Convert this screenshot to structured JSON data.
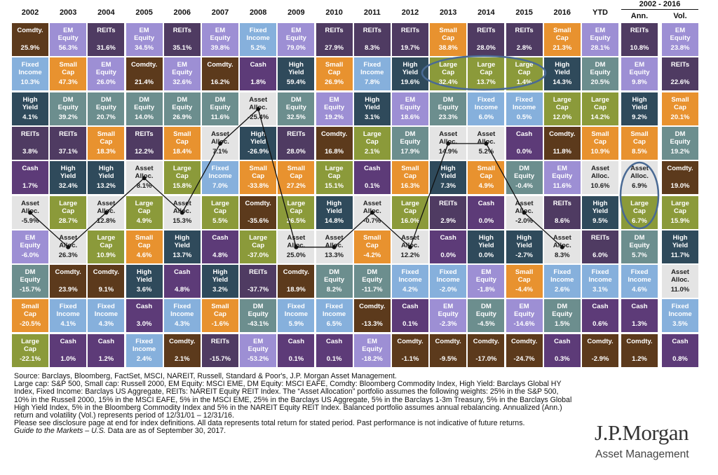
{
  "group_header": "2002 - 2016",
  "columns": [
    {
      "header": "2002",
      "connect": true,
      "cells": [
        [
          "Comdty.",
          "25.9%",
          "#5c3a1c"
        ],
        [
          "Fixed Income",
          "10.3%",
          "#86b0dc"
        ],
        [
          "High Yield",
          "4.1%",
          "#2f4a5b"
        ],
        [
          "REITs",
          "3.8%",
          "#4f3b62"
        ],
        [
          "Cash",
          "1.7%",
          "#5d3b78"
        ],
        [
          "Asset Alloc.",
          "-5.9%",
          "#e4e4e4"
        ],
        [
          "EM Equity",
          "-6.0%",
          "#9d8fd4"
        ],
        [
          "DM Equity",
          "-15.7%",
          "#6c8e8e"
        ],
        [
          "Small Cap",
          "-20.5%",
          "#e8922f"
        ],
        [
          "Large Cap",
          "-22.1%",
          "#8b9a3a"
        ]
      ]
    },
    {
      "header": "2003",
      "connect": true,
      "cells": [
        [
          "EM Equity",
          "56.3%",
          "#9d8fd4"
        ],
        [
          "Small Cap",
          "47.3%",
          "#e8922f"
        ],
        [
          "DM Equity",
          "39.2%",
          "#6c8e8e"
        ],
        [
          "REITs",
          "37.1%",
          "#4f3b62"
        ],
        [
          "High Yield",
          "32.4%",
          "#2f4a5b"
        ],
        [
          "Large Cap",
          "28.7%",
          "#8b9a3a"
        ],
        [
          "Asset Alloc.",
          "26.3%",
          "#e4e4e4"
        ],
        [
          "Comdty.",
          "23.9%",
          "#5c3a1c"
        ],
        [
          "Fixed Income",
          "4.1%",
          "#86b0dc"
        ],
        [
          "Cash",
          "1.0%",
          "#5d3b78"
        ]
      ]
    },
    {
      "header": "2004",
      "connect": true,
      "cells": [
        [
          "REITs",
          "31.6%",
          "#4f3b62"
        ],
        [
          "EM Equity",
          "26.0%",
          "#9d8fd4"
        ],
        [
          "DM Equity",
          "20.7%",
          "#6c8e8e"
        ],
        [
          "Small Cap",
          "18.3%",
          "#e8922f"
        ],
        [
          "High Yield",
          "13.2%",
          "#2f4a5b"
        ],
        [
          "Asset Alloc.",
          "12.8%",
          "#e4e4e4"
        ],
        [
          "Large Cap",
          "10.9%",
          "#8b9a3a"
        ],
        [
          "Comdty.",
          "9.1%",
          "#5c3a1c"
        ],
        [
          "Fixed Income",
          "4.3%",
          "#86b0dc"
        ],
        [
          "Cash",
          "1.2%",
          "#5d3b78"
        ]
      ]
    },
    {
      "header": "2005",
      "connect": true,
      "cells": [
        [
          "EM Equity",
          "34.5%",
          "#9d8fd4"
        ],
        [
          "Comdty.",
          "21.4%",
          "#5c3a1c"
        ],
        [
          "DM Equity",
          "14.0%",
          "#6c8e8e"
        ],
        [
          "REITs",
          "12.2%",
          "#4f3b62"
        ],
        [
          "Asset Alloc.",
          "8.1%",
          "#e4e4e4"
        ],
        [
          "Large Cap",
          "4.9%",
          "#8b9a3a"
        ],
        [
          "Small Cap",
          "4.6%",
          "#e8922f"
        ],
        [
          "High Yield",
          "3.6%",
          "#2f4a5b"
        ],
        [
          "Cash",
          "3.0%",
          "#5d3b78"
        ],
        [
          "Fixed Income",
          "2.4%",
          "#86b0dc"
        ]
      ]
    },
    {
      "header": "2006",
      "connect": true,
      "cells": [
        [
          "REITs",
          "35.1%",
          "#4f3b62"
        ],
        [
          "EM Equity",
          "32.6%",
          "#9d8fd4"
        ],
        [
          "DM Equity",
          "26.9%",
          "#6c8e8e"
        ],
        [
          "Small Cap",
          "18.4%",
          "#e8922f"
        ],
        [
          "Large Cap",
          "15.8%",
          "#8b9a3a"
        ],
        [
          "Asset Alloc.",
          "15.3%",
          "#e4e4e4"
        ],
        [
          "High Yield",
          "13.7%",
          "#2f4a5b"
        ],
        [
          "Cash",
          "4.8%",
          "#5d3b78"
        ],
        [
          "Fixed Income",
          "4.3%",
          "#86b0dc"
        ],
        [
          "Comdty.",
          "2.1%",
          "#5c3a1c"
        ]
      ]
    },
    {
      "header": "2007",
      "connect": true,
      "cells": [
        [
          "EM Equity",
          "39.8%",
          "#9d8fd4"
        ],
        [
          "Comdty.",
          "16.2%",
          "#5c3a1c"
        ],
        [
          "DM Equity",
          "11.6%",
          "#6c8e8e"
        ],
        [
          "Asset Alloc.",
          "7.1%",
          "#e4e4e4"
        ],
        [
          "Fixed Income",
          "7.0%",
          "#86b0dc"
        ],
        [
          "Large Cap",
          "5.5%",
          "#8b9a3a"
        ],
        [
          "Cash",
          "4.8%",
          "#5d3b78"
        ],
        [
          "High Yield",
          "3.2%",
          "#2f4a5b"
        ],
        [
          "Small Cap",
          "-1.6%",
          "#e8922f"
        ],
        [
          "REITs",
          "-15.7%",
          "#4f3b62"
        ]
      ]
    },
    {
      "header": "2008",
      "connect": true,
      "cells": [
        [
          "Fixed Income",
          "5.2%",
          "#86b0dc"
        ],
        [
          "Cash",
          "1.8%",
          "#5d3b78"
        ],
        [
          "Asset Alloc.",
          "-25.4%",
          "#e4e4e4"
        ],
        [
          "High Yield",
          "-26.9%",
          "#2f4a5b"
        ],
        [
          "Small Cap",
          "-33.8%",
          "#e8922f"
        ],
        [
          "Comdty.",
          "-35.6%",
          "#5c3a1c"
        ],
        [
          "Large Cap",
          "-37.0%",
          "#8b9a3a"
        ],
        [
          "REITs",
          "-37.7%",
          "#4f3b62"
        ],
        [
          "DM Equity",
          "-43.1%",
          "#6c8e8e"
        ],
        [
          "EM Equity",
          "-53.2%",
          "#9d8fd4"
        ]
      ]
    },
    {
      "header": "2009",
      "connect": true,
      "cells": [
        [
          "EM Equity",
          "79.0%",
          "#9d8fd4"
        ],
        [
          "High Yield",
          "59.4%",
          "#2f4a5b"
        ],
        [
          "DM Equity",
          "32.5%",
          "#6c8e8e"
        ],
        [
          "REITs",
          "28.0%",
          "#4f3b62"
        ],
        [
          "Small Cap",
          "27.2%",
          "#e8922f"
        ],
        [
          "Large Cap",
          "26.5%",
          "#8b9a3a"
        ],
        [
          "Asset Alloc.",
          "25.0%",
          "#e4e4e4"
        ],
        [
          "Comdty.",
          "18.9%",
          "#5c3a1c"
        ],
        [
          "Fixed Income",
          "5.9%",
          "#86b0dc"
        ],
        [
          "Cash",
          "0.1%",
          "#5d3b78"
        ]
      ]
    },
    {
      "header": "2010",
      "connect": true,
      "cells": [
        [
          "REITs",
          "27.9%",
          "#4f3b62"
        ],
        [
          "Small Cap",
          "26.9%",
          "#e8922f"
        ],
        [
          "EM Equity",
          "19.2%",
          "#9d8fd4"
        ],
        [
          "Comdty.",
          "16.8%",
          "#5c3a1c"
        ],
        [
          "Large Cap",
          "15.1%",
          "#8b9a3a"
        ],
        [
          "High Yield",
          "14.8%",
          "#2f4a5b"
        ],
        [
          "Asset Alloc.",
          "13.3%",
          "#e4e4e4"
        ],
        [
          "DM Equity",
          "8.2%",
          "#6c8e8e"
        ],
        [
          "Fixed Income",
          "6.5%",
          "#86b0dc"
        ],
        [
          "Cash",
          "0.1%",
          "#5d3b78"
        ]
      ]
    },
    {
      "header": "2011",
      "connect": true,
      "cells": [
        [
          "REITs",
          "8.3%",
          "#4f3b62"
        ],
        [
          "Fixed Income",
          "7.8%",
          "#86b0dc"
        ],
        [
          "High Yield",
          "3.1%",
          "#2f4a5b"
        ],
        [
          "Large Cap",
          "2.1%",
          "#8b9a3a"
        ],
        [
          "Cash",
          "0.1%",
          "#5d3b78"
        ],
        [
          "Asset Alloc.",
          "-0.7%",
          "#e4e4e4"
        ],
        [
          "Small Cap",
          "-4.2%",
          "#e8922f"
        ],
        [
          "DM Equity",
          "-11.7%",
          "#6c8e8e"
        ],
        [
          "Comdty.",
          "-13.3%",
          "#5c3a1c"
        ],
        [
          "EM Equity",
          "-18.2%",
          "#9d8fd4"
        ]
      ]
    },
    {
      "header": "2012",
      "connect": true,
      "cells": [
        [
          "REITs",
          "19.7%",
          "#4f3b62"
        ],
        [
          "High Yield",
          "19.6%",
          "#2f4a5b"
        ],
        [
          "EM Equity",
          "18.6%",
          "#9d8fd4"
        ],
        [
          "DM Equity",
          "17.9%",
          "#6c8e8e"
        ],
        [
          "Small Cap",
          "16.3%",
          "#e8922f"
        ],
        [
          "Large Cap",
          "16.0%",
          "#8b9a3a"
        ],
        [
          "Asset Alloc.",
          "12.2%",
          "#e4e4e4"
        ],
        [
          "Fixed Income",
          "4.2%",
          "#86b0dc"
        ],
        [
          "Cash",
          "0.1%",
          "#5d3b78"
        ],
        [
          "Comdty.",
          "-1.1%",
          "#5c3a1c"
        ]
      ]
    },
    {
      "header": "2013",
      "connect": true,
      "cells": [
        [
          "Small Cap",
          "38.8%",
          "#e8922f"
        ],
        [
          "Large Cap",
          "32.4%",
          "#8b9a3a"
        ],
        [
          "DM Equity",
          "23.3%",
          "#6c8e8e"
        ],
        [
          "Asset Alloc.",
          "14.9%",
          "#e4e4e4"
        ],
        [
          "High Yield",
          "7.3%",
          "#2f4a5b"
        ],
        [
          "REITs",
          "2.9%",
          "#4f3b62"
        ],
        [
          "Cash",
          "0.0%",
          "#5d3b78"
        ],
        [
          "Fixed Income",
          "-2.0%",
          "#86b0dc"
        ],
        [
          "EM Equity",
          "-2.3%",
          "#9d8fd4"
        ],
        [
          "Comdty.",
          "-9.5%",
          "#5c3a1c"
        ]
      ]
    },
    {
      "header": "2014",
      "connect": true,
      "cells": [
        [
          "REITs",
          "28.0%",
          "#4f3b62"
        ],
        [
          "Large Cap",
          "13.7%",
          "#8b9a3a"
        ],
        [
          "Fixed Income",
          "6.0%",
          "#86b0dc"
        ],
        [
          "Asset Alloc.",
          "5.2%",
          "#e4e4e4"
        ],
        [
          "Small Cap",
          "4.9%",
          "#e8922f"
        ],
        [
          "Cash",
          "0.0%",
          "#5d3b78"
        ],
        [
          "High Yield",
          "0.0%",
          "#2f4a5b"
        ],
        [
          "EM Equity",
          "-1.8%",
          "#9d8fd4"
        ],
        [
          "DM Equity",
          "-4.5%",
          "#6c8e8e"
        ],
        [
          "Comdty.",
          "-17.0%",
          "#5c3a1c"
        ]
      ]
    },
    {
      "header": "2015",
      "connect": true,
      "cells": [
        [
          "REITs",
          "2.8%",
          "#4f3b62"
        ],
        [
          "Large Cap",
          "1.4%",
          "#8b9a3a"
        ],
        [
          "Fixed Income",
          "0.5%",
          "#86b0dc"
        ],
        [
          "Cash",
          "0.0%",
          "#5d3b78"
        ],
        [
          "DM Equity",
          "-0.4%",
          "#6c8e8e"
        ],
        [
          "Asset Alloc.",
          "-2.0%",
          "#e4e4e4"
        ],
        [
          "High Yield",
          "-2.7%",
          "#2f4a5b"
        ],
        [
          "Small Cap",
          "-4.4%",
          "#e8922f"
        ],
        [
          "EM Equity",
          "-14.6%",
          "#9d8fd4"
        ],
        [
          "Comdty.",
          "-24.7%",
          "#5c3a1c"
        ]
      ]
    },
    {
      "header": "2016",
      "connect": true,
      "cells": [
        [
          "Small Cap",
          "21.3%",
          "#e8922f"
        ],
        [
          "High Yield",
          "14.3%",
          "#2f4a5b"
        ],
        [
          "Large Cap",
          "12.0%",
          "#8b9a3a"
        ],
        [
          "Comdty.",
          "11.8%",
          "#5c3a1c"
        ],
        [
          "EM Equity",
          "11.6%",
          "#9d8fd4"
        ],
        [
          "REITs",
          "8.6%",
          "#4f3b62"
        ],
        [
          "Asset Alloc.",
          "8.3%",
          "#e4e4e4"
        ],
        [
          "Fixed Income",
          "2.6%",
          "#86b0dc"
        ],
        [
          "DM Equity",
          "1.5%",
          "#6c8e8e"
        ],
        [
          "Cash",
          "0.3%",
          "#5d3b78"
        ]
      ]
    },
    {
      "header": "YTD",
      "connect": false,
      "cells": [
        [
          "EM Equity",
          "28.1%",
          "#9d8fd4"
        ],
        [
          "DM Equity",
          "20.5%",
          "#6c8e8e"
        ],
        [
          "Large Cap",
          "14.2%",
          "#8b9a3a"
        ],
        [
          "Small Cap",
          "10.9%",
          "#e8922f"
        ],
        [
          "Asset Alloc.",
          "10.6%",
          "#e4e4e4"
        ],
        [
          "High Yield",
          "9.5%",
          "#2f4a5b"
        ],
        [
          "REITs",
          "6.0%",
          "#4f3b62"
        ],
        [
          "Fixed Income",
          "3.1%",
          "#86b0dc"
        ],
        [
          "Cash",
          "0.6%",
          "#5d3b78"
        ],
        [
          "Comdty.",
          "-2.9%",
          "#5c3a1c"
        ]
      ]
    },
    {
      "header": "Ann.",
      "connect": false,
      "cells": [
        [
          "REITs",
          "10.8%",
          "#4f3b62"
        ],
        [
          "EM Equity",
          "9.8%",
          "#9d8fd4"
        ],
        [
          "High Yield",
          "9.2%",
          "#2f4a5b"
        ],
        [
          "Small Cap",
          "8.5%",
          "#e8922f"
        ],
        [
          "Asset Alloc.",
          "6.9%",
          "#e4e4e4"
        ],
        [
          "Large Cap",
          "6.7%",
          "#8b9a3a"
        ],
        [
          "DM Equity",
          "5.7%",
          "#6c8e8e"
        ],
        [
          "Fixed Income",
          "4.6%",
          "#86b0dc"
        ],
        [
          "Cash",
          "1.3%",
          "#5d3b78"
        ],
        [
          "Comdty.",
          "1.2%",
          "#5c3a1c"
        ]
      ]
    },
    {
      "header": "Vol.",
      "connect": false,
      "cells": [
        [
          "EM Equity",
          "23.8%",
          "#9d8fd4"
        ],
        [
          "REITs",
          "22.6%",
          "#4f3b62"
        ],
        [
          "Small Cap",
          "20.1%",
          "#e8922f"
        ],
        [
          "DM Equity",
          "19.2%",
          "#6c8e8e"
        ],
        [
          "Comdty.",
          "19.0%",
          "#5c3a1c"
        ],
        [
          "Large Cap",
          "15.9%",
          "#8b9a3a"
        ],
        [
          "High Yield",
          "11.7%",
          "#2f4a5b"
        ],
        [
          "Asset Alloc.",
          "11.0%",
          "#e4e4e4"
        ],
        [
          "Fixed Income",
          "3.5%",
          "#86b0dc"
        ],
        [
          "Cash",
          "0.8%",
          "#5d3b78"
        ]
      ]
    }
  ],
  "notes": [
    "Source: Barclays, Bloomberg, FactSet, MSCI, NAREIT, Russell, Standard & Poor's, J.P. Morgan Asset Management.",
    "Large cap: S&P 500, Small cap: Russell 2000, EM Equity: MSCI EME, DM Equity: MSCI EAFE, Comdty: Bloomberg Commodity Index, High Yield: Barclays Global HY Index, Fixed Income: Barclays US Aggregate, REITs: NAREIT Equity REIT Index. The “Asset Allocation” portfolio assumes the following weights: 25% in the S&P 500, 10% in the Russell 2000, 15% in the MSCI EAFE, 5% in the MSCI EME, 25% in the Barclays US Aggregate, 5% in the Barclays 1-3m Treasury, 5% in the Barclays Global High Yield Index, 5% in the Bloomberg Commodity Index and 5% in the NAREIT Equity REIT Index. Balanced portfolio assumes annual rebalancing. Annualized (Ann.) return and volatility (Vol.) represents period of 12/31/01 – 12/31/16.",
    "Please see disclosure page at end for index definitions. All data represents total return for stated period. Past performance is not indicative of future returns."
  ],
  "guide": "Guide to the Markets – U.S.",
  "as_of": "Data are as of September 30, 2017.",
  "logo": {
    "name": "J.P.Morgan",
    "sub": "Asset Management"
  }
}
